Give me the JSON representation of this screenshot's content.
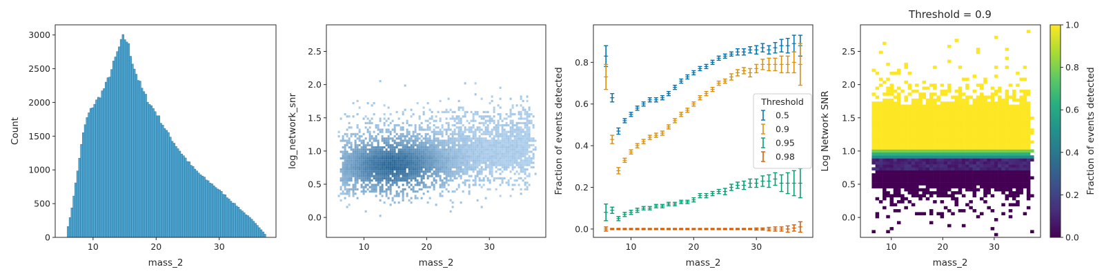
{
  "chart_data": [
    {
      "type": "bar",
      "xlabel": "mass_2",
      "ylabel": "Count",
      "xlim": [
        4,
        39
      ],
      "ylim": [
        0,
        3150
      ],
      "xticks": [
        10,
        20,
        30
      ],
      "yticks": [
        0,
        500,
        1000,
        1500,
        2000,
        2500,
        3000
      ],
      "bar_color": "#4ea6d2",
      "bar_edge": "#2a6f93",
      "histogram": [
        {
          "x": 5.8,
          "count": 60
        },
        {
          "x": 6.5,
          "count": 350
        },
        {
          "x": 7.0,
          "count": 650
        },
        {
          "x": 7.5,
          "count": 950
        },
        {
          "x": 8.0,
          "count": 1280
        },
        {
          "x": 8.6,
          "count": 1620
        },
        {
          "x": 9.2,
          "count": 1810
        },
        {
          "x": 10.0,
          "count": 1950
        },
        {
          "x": 11.0,
          "count": 2080
        },
        {
          "x": 12.0,
          "count": 2250
        },
        {
          "x": 13.0,
          "count": 2500
        },
        {
          "x": 14.0,
          "count": 2780
        },
        {
          "x": 14.8,
          "count": 2970
        },
        {
          "x": 15.5,
          "count": 2900
        },
        {
          "x": 16.0,
          "count": 2680
        },
        {
          "x": 17.0,
          "count": 2380
        },
        {
          "x": 18.0,
          "count": 2150
        },
        {
          "x": 19.0,
          "count": 1980
        },
        {
          "x": 20.0,
          "count": 1850
        },
        {
          "x": 21.0,
          "count": 1680
        },
        {
          "x": 22.0,
          "count": 1520
        },
        {
          "x": 23.0,
          "count": 1380
        },
        {
          "x": 24.0,
          "count": 1250
        },
        {
          "x": 25.0,
          "count": 1130
        },
        {
          "x": 26.0,
          "count": 1020
        },
        {
          "x": 27.0,
          "count": 930
        },
        {
          "x": 28.0,
          "count": 850
        },
        {
          "x": 29.0,
          "count": 780
        },
        {
          "x": 30.0,
          "count": 700
        },
        {
          "x": 31.0,
          "count": 620
        },
        {
          "x": 32.0,
          "count": 530
        },
        {
          "x": 33.0,
          "count": 450
        },
        {
          "x": 34.0,
          "count": 360
        },
        {
          "x": 35.0,
          "count": 280
        },
        {
          "x": 36.0,
          "count": 180
        },
        {
          "x": 36.8,
          "count": 100
        },
        {
          "x": 37.4,
          "count": 30
        }
      ]
    },
    {
      "type": "heatmap",
      "xlabel": "mass_2",
      "ylabel": "log_network_snr",
      "xlim": [
        4,
        39
      ],
      "ylim": [
        -0.3,
        2.9
      ],
      "xticks": [
        10,
        20,
        30
      ],
      "yticks": [
        0.0,
        0.5,
        1.0,
        1.5,
        2.0,
        2.5
      ],
      "ytick_labels": [
        "0.0",
        "0.5",
        "1.0",
        "1.5",
        "2.0",
        "2.5"
      ],
      "density_peak": {
        "x": 14.5,
        "y": 0.8
      },
      "mass_range": [
        5.5,
        37.5
      ],
      "snr_core_range": [
        0.3,
        1.6
      ],
      "light_color": "#b4d3f0",
      "dark_color": "#1f5f90"
    },
    {
      "type": "scatter",
      "xlabel": "mass_2",
      "ylabel": "Fraction of events detected",
      "xlim": [
        4,
        39
      ],
      "ylim": [
        -0.04,
        0.98
      ],
      "xticks": [
        10,
        20,
        30
      ],
      "yticks": [
        0.0,
        0.2,
        0.4,
        0.6,
        0.8
      ],
      "ytick_labels": [
        "0.0",
        "0.2",
        "0.4",
        "0.6",
        "0.8"
      ],
      "x": [
        6,
        7,
        8,
        9,
        10,
        11,
        12,
        13,
        14,
        15,
        16,
        17,
        18,
        19,
        20,
        21,
        22,
        23,
        24,
        25,
        26,
        27,
        28,
        29,
        30,
        31,
        32,
        33,
        34,
        35,
        36,
        37
      ],
      "legend_title": "Threshold",
      "legend_position": "center-right",
      "series": [
        {
          "name": "0.5",
          "color": "#0173b2",
          "values": [
            0.83,
            0.63,
            0.47,
            0.52,
            0.55,
            0.58,
            0.6,
            0.62,
            0.62,
            0.63,
            0.65,
            0.68,
            0.71,
            0.73,
            0.75,
            0.77,
            0.78,
            0.8,
            0.82,
            0.83,
            0.84,
            0.85,
            0.85,
            0.86,
            0.86,
            0.87,
            0.86,
            0.87,
            0.88,
            0.88,
            0.89,
            0.88
          ],
          "errors": [
            0.05,
            0.02,
            0.015,
            0.01,
            0.01,
            0.01,
            0.01,
            0.01,
            0.01,
            0.01,
            0.01,
            0.01,
            0.01,
            0.01,
            0.01,
            0.01,
            0.01,
            0.01,
            0.01,
            0.01,
            0.01,
            0.015,
            0.015,
            0.015,
            0.02,
            0.02,
            0.02,
            0.025,
            0.03,
            0.035,
            0.04,
            0.05
          ]
        },
        {
          "name": "0.9",
          "color": "#de8f05",
          "values": [
            0.73,
            0.43,
            0.28,
            0.33,
            0.37,
            0.4,
            0.42,
            0.44,
            0.45,
            0.46,
            0.49,
            0.52,
            0.55,
            0.57,
            0.6,
            0.63,
            0.65,
            0.67,
            0.7,
            0.71,
            0.73,
            0.75,
            0.76,
            0.75,
            0.77,
            0.79,
            0.79,
            0.79,
            0.79,
            0.79,
            0.8,
            0.79
          ],
          "errors": [
            0.06,
            0.02,
            0.015,
            0.01,
            0.01,
            0.01,
            0.01,
            0.01,
            0.01,
            0.01,
            0.01,
            0.01,
            0.01,
            0.01,
            0.01,
            0.01,
            0.01,
            0.01,
            0.01,
            0.01,
            0.015,
            0.015,
            0.015,
            0.02,
            0.02,
            0.025,
            0.03,
            0.03,
            0.04,
            0.04,
            0.05,
            0.1
          ]
        },
        {
          "name": "0.95",
          "color": "#029e73",
          "values": [
            0.08,
            0.09,
            0.05,
            0.07,
            0.08,
            0.09,
            0.1,
            0.1,
            0.11,
            0.11,
            0.12,
            0.12,
            0.13,
            0.13,
            0.14,
            0.16,
            0.16,
            0.17,
            0.18,
            0.18,
            0.2,
            0.21,
            0.21,
            0.22,
            0.22,
            0.23,
            0.23,
            0.24,
            0.22,
            0.22,
            0.22,
            0.22
          ],
          "errors": [
            0.04,
            0.015,
            0.01,
            0.01,
            0.01,
            0.01,
            0.008,
            0.008,
            0.008,
            0.008,
            0.008,
            0.008,
            0.008,
            0.008,
            0.01,
            0.01,
            0.01,
            0.01,
            0.01,
            0.015,
            0.015,
            0.015,
            0.02,
            0.02,
            0.02,
            0.025,
            0.03,
            0.03,
            0.04,
            0.05,
            0.06,
            0.07
          ]
        },
        {
          "name": "0.98",
          "color": "#d55e00",
          "values": [
            0.0,
            0.0,
            0.0,
            0.0,
            0.0,
            0.0,
            0.0,
            0.0,
            0.0,
            0.0,
            0.0,
            0.0,
            0.0,
            0.0,
            0.0,
            0.0,
            0.0,
            0.0,
            0.0,
            0.0,
            0.0,
            0.0,
            0.0,
            0.0,
            0.0,
            0.0,
            0.0,
            0.0,
            0.0,
            0.0,
            0.005,
            0.01
          ],
          "errors": [
            0.01,
            0.003,
            0.003,
            0.003,
            0.003,
            0.003,
            0.003,
            0.003,
            0.003,
            0.003,
            0.003,
            0.003,
            0.003,
            0.003,
            0.003,
            0.003,
            0.003,
            0.003,
            0.003,
            0.003,
            0.003,
            0.003,
            0.003,
            0.003,
            0.005,
            0.005,
            0.008,
            0.01,
            0.01,
            0.015,
            0.015,
            0.025
          ]
        }
      ]
    },
    {
      "type": "heatmap",
      "title": "Threshold = 0.9",
      "xlabel": "mass_2",
      "ylabel": "Log Network SNR",
      "xlim": [
        4,
        39
      ],
      "ylim": [
        -0.3,
        2.9
      ],
      "xticks": [
        10,
        20,
        30
      ],
      "yticks": [
        0.0,
        0.5,
        1.0,
        1.5,
        2.0,
        2.5
      ],
      "ytick_labels": [
        "0.0",
        "0.5",
        "1.0",
        "1.5",
        "2.0",
        "2.5"
      ],
      "mass_range": [
        5.5,
        37.5
      ],
      "detected_above_snr": 1.0,
      "transition_band": [
        0.85,
        1.0
      ],
      "colorbar": {
        "label": "Fraction of events detected",
        "range": [
          0.0,
          1.0
        ],
        "ticks": [
          0.0,
          0.2,
          0.4,
          0.6,
          0.8,
          1.0
        ],
        "tick_labels": [
          "0.0",
          "0.2",
          "0.4",
          "0.6",
          "0.8",
          "1.0"
        ],
        "colormap": "viridis"
      }
    }
  ]
}
